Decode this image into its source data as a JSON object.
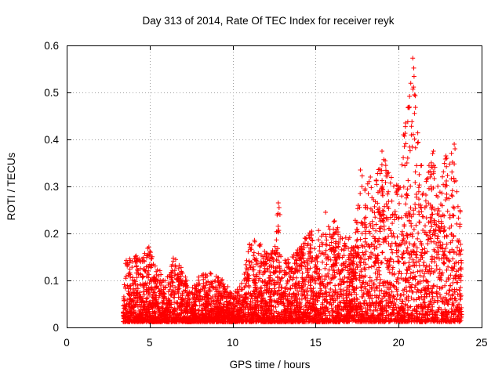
{
  "chart_data": {
    "type": "scatter",
    "title": "Day 313 of 2014, Rate Of TEC Index for receiver reyk",
    "xlabel": "GPS time / hours",
    "ylabel": "ROTI / TECUs",
    "xlim": [
      0,
      25
    ],
    "ylim": [
      0,
      0.6
    ],
    "x_ticks": [
      0,
      5,
      10,
      15,
      20,
      25
    ],
    "y_ticks": [
      0,
      0.1,
      0.2,
      0.3,
      0.4,
      0.5,
      0.6
    ],
    "grid": true,
    "marker": "+",
    "marker_color": "#ff0000",
    "data_range_hours": [
      3.4,
      23.8
    ],
    "envelope": [
      {
        "x": 3.5,
        "y": 0.15
      },
      {
        "x": 4.0,
        "y": 0.16
      },
      {
        "x": 4.5,
        "y": 0.15
      },
      {
        "x": 4.9,
        "y": 0.18
      },
      {
        "x": 5.5,
        "y": 0.13
      },
      {
        "x": 6.0,
        "y": 0.1
      },
      {
        "x": 6.5,
        "y": 0.16
      },
      {
        "x": 7.0,
        "y": 0.12
      },
      {
        "x": 7.5,
        "y": 0.08
      },
      {
        "x": 8.0,
        "y": 0.11
      },
      {
        "x": 8.5,
        "y": 0.12
      },
      {
        "x": 9.0,
        "y": 0.11
      },
      {
        "x": 9.5,
        "y": 0.1
      },
      {
        "x": 10.0,
        "y": 0.07
      },
      {
        "x": 10.5,
        "y": 0.09
      },
      {
        "x": 11.0,
        "y": 0.18
      },
      {
        "x": 11.5,
        "y": 0.19
      },
      {
        "x": 12.0,
        "y": 0.16
      },
      {
        "x": 12.5,
        "y": 0.17
      },
      {
        "x": 12.7,
        "y": 0.26
      },
      {
        "x": 13.0,
        "y": 0.14
      },
      {
        "x": 13.5,
        "y": 0.15
      },
      {
        "x": 14.0,
        "y": 0.17
      },
      {
        "x": 14.5,
        "y": 0.2
      },
      {
        "x": 15.0,
        "y": 0.21
      },
      {
        "x": 15.5,
        "y": 0.2
      },
      {
        "x": 16.0,
        "y": 0.24
      },
      {
        "x": 16.5,
        "y": 0.2
      },
      {
        "x": 17.0,
        "y": 0.19
      },
      {
        "x": 17.5,
        "y": 0.25
      },
      {
        "x": 17.8,
        "y": 0.33
      },
      {
        "x": 18.5,
        "y": 0.3
      },
      {
        "x": 19.0,
        "y": 0.37
      },
      {
        "x": 19.5,
        "y": 0.33
      },
      {
        "x": 20.0,
        "y": 0.3
      },
      {
        "x": 20.4,
        "y": 0.43
      },
      {
        "x": 20.9,
        "y": 0.57
      },
      {
        "x": 21.0,
        "y": 0.49
      },
      {
        "x": 21.5,
        "y": 0.3
      },
      {
        "x": 22.0,
        "y": 0.37
      },
      {
        "x": 22.5,
        "y": 0.3
      },
      {
        "x": 22.8,
        "y": 0.36
      },
      {
        "x": 23.3,
        "y": 0.38
      },
      {
        "x": 23.7,
        "y": 0.26
      }
    ],
    "outliers": [
      {
        "x": 20.85,
        "y": 0.573
      },
      {
        "x": 20.95,
        "y": 0.495
      },
      {
        "x": 21.0,
        "y": 0.493
      },
      {
        "x": 20.42,
        "y": 0.435
      },
      {
        "x": 20.3,
        "y": 0.41
      },
      {
        "x": 20.35,
        "y": 0.385
      },
      {
        "x": 19.0,
        "y": 0.375
      },
      {
        "x": 22.1,
        "y": 0.375
      },
      {
        "x": 22.05,
        "y": 0.37
      },
      {
        "x": 22.85,
        "y": 0.365
      },
      {
        "x": 22.9,
        "y": 0.36
      },
      {
        "x": 23.35,
        "y": 0.39
      },
      {
        "x": 23.4,
        "y": 0.38
      },
      {
        "x": 20.5,
        "y": 0.35
      },
      {
        "x": 17.7,
        "y": 0.335
      },
      {
        "x": 19.3,
        "y": 0.33
      },
      {
        "x": 18.3,
        "y": 0.32
      },
      {
        "x": 12.75,
        "y": 0.265
      },
      {
        "x": 12.8,
        "y": 0.255
      },
      {
        "x": 12.85,
        "y": 0.24
      },
      {
        "x": 15.6,
        "y": 0.245
      },
      {
        "x": 16.1,
        "y": 0.225
      },
      {
        "x": 21.8,
        "y": 0.33
      },
      {
        "x": 21.9,
        "y": 0.32
      }
    ]
  }
}
